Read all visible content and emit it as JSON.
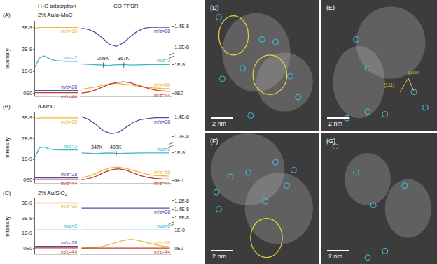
{
  "figure": {
    "column_titles": [
      "H₂O adsorption",
      "CO TPSR"
    ]
  },
  "chart_data": [
    {
      "type": "line",
      "panel": "(A)",
      "title": "2% Au/α-MoC",
      "y_label": "Intensity",
      "tick_labels": "y",
      "grid": false,
      "adsorption": {
        "x": [
          0,
          1,
          2,
          3,
          4,
          5,
          6,
          7,
          8,
          9,
          10
        ],
        "xlim": [
          0,
          10
        ],
        "ylim": [
          -1.5e-10,
          3.3e-09
        ],
        "yticks": [
          {
            "value": 0,
            "label": "0E0"
          },
          {
            "value": 1e-09,
            "label": "1E-9"
          },
          {
            "value": 2e-09,
            "label": "2E-9"
          },
          {
            "value": 3e-09,
            "label": "3E-9"
          }
        ],
        "series": [
          {
            "name": "m/z=18",
            "color": "#f0b43c",
            "values": [
              2.95e-09,
              3e-09,
              3e-09,
              3e-09,
              3e-09,
              3e-09,
              3e-09,
              3e-09,
              3e-09,
              3e-09,
              3e-09
            ]
          },
          {
            "name": "m/z=2",
            "color": "#3fb6c8",
            "values": [
              1.2e-09,
              1.6e-09,
              1.7e-09,
              1.62e-09,
              1.52e-09,
              1.48e-09,
              1.46e-09,
              1.45e-09,
              1.45e-09,
              1.45e-09,
              1.45e-09
            ]
          },
          {
            "name": "m/z=28",
            "color": "#4e4ea6",
            "values": [
              1.2e-10,
              1.2e-10,
              1.2e-10,
              1.2e-10,
              1.2e-10,
              1.2e-10,
              1.2e-10,
              1.2e-10,
              1.2e-10,
              1.2e-10,
              1.2e-10
            ]
          },
          {
            "name": "m/z=44",
            "color": "#c0392b",
            "values": [
              2e-11,
              2e-11,
              2e-11,
              2e-11,
              2e-11,
              2e-11,
              2e-11,
              2e-11,
              2e-11,
              2e-11,
              2e-11
            ]
          }
        ]
      },
      "tpsr": {
        "x": [
          245,
          265,
          285,
          305,
          325,
          345,
          365,
          385,
          405,
          425,
          445,
          465,
          485,
          500
        ],
        "xlim": [
          240,
          505
        ],
        "upper": {
          "ylim": [
            1.15e-08,
            1.45e-08
          ],
          "yticks": [
            {
              "value": 1.2e-08,
              "label": "1.2E-8"
            },
            {
              "value": 1.4e-08,
              "label": "1.4E-8"
            }
          ],
          "series": [
            {
              "name": "m/z=28",
              "color": "#4e4ea6",
              "values": [
                1.38e-08,
                1.37e-08,
                1.34e-08,
                1.29e-08,
                1.23e-08,
                1.21e-08,
                1.24e-08,
                1.3e-08,
                1.35e-08,
                1.38e-08,
                1.39e-08,
                1.39e-08,
                1.39e-08,
                1.39e-08
              ]
            }
          ]
        },
        "lower": {
          "ylim": [
            -1e-10,
            1.2e-09
          ],
          "yticks": [
            {
              "value": 0,
              "label": "0E0"
            },
            {
              "value": 1e-09,
              "label": "1E-9"
            }
          ],
          "series": [
            {
              "name": "m/z=2",
              "color": "#3fb6c8",
              "values": [
                1.02e-09,
                1.01e-09,
                1e-09,
                9.8e-10,
                9.7e-10,
                9.9e-10,
                1e-09,
                9.8e-10,
                9.9e-10,
                1e-09,
                1e-09,
                1e-09,
                1e-09,
                1e-09
              ]
            },
            {
              "name": "m/z=18",
              "color": "#f0b43c",
              "values": [
                1.5e-10,
                1.8e-10,
                2.2e-10,
                2.8e-10,
                3.3e-10,
                3.5e-10,
                3.3e-10,
                3e-10,
                2.6e-10,
                2.2e-10,
                2e-10,
                1.8e-10,
                1.7e-10,
                1.7e-10
              ]
            },
            {
              "name": "m/z=44",
              "color": "#c0392b",
              "values": [
                2e-11,
                5e-11,
                1.2e-10,
                2.2e-10,
                3.2e-10,
                3.8e-10,
                4e-10,
                3.7e-10,
                3e-10,
                2.2e-10,
                1.5e-10,
                1e-10,
                8e-11,
                7e-11
              ]
            }
          ]
        },
        "annotations": [
          {
            "text": "308K",
            "x": 308
          },
          {
            "text": "367K",
            "x": 367
          }
        ]
      }
    },
    {
      "type": "line",
      "panel": "(B)",
      "title": "α-MoC",
      "y_label": "Intensity",
      "tick_labels": "y",
      "grid": false,
      "adsorption": {
        "x": [
          0,
          1,
          2,
          3,
          4,
          5,
          6,
          7,
          8,
          9,
          10
        ],
        "xlim": [
          0,
          10
        ],
        "ylim": [
          -1.5e-10,
          3.3e-09
        ],
        "yticks": [
          {
            "value": 0,
            "label": "0E0"
          },
          {
            "value": 1e-09,
            "label": "1E-9"
          },
          {
            "value": 2e-09,
            "label": "2E-9"
          },
          {
            "value": 3e-09,
            "label": "3E-9"
          }
        ],
        "series": [
          {
            "name": "m/z=18",
            "color": "#f0b43c",
            "values": [
              2.95e-09,
              3e-09,
              3e-09,
              3e-09,
              3e-09,
              3e-09,
              3e-09,
              3e-09,
              3e-09,
              3e-09,
              3e-09
            ]
          },
          {
            "name": "m/z=2",
            "color": "#3fb6c8",
            "values": [
              1.1e-09,
              1.55e-09,
              1.6e-09,
              1.52e-09,
              1.47e-09,
              1.45e-09,
              1.45e-09,
              1.45e-09,
              1.45e-09,
              1.45e-09,
              1.45e-09
            ]
          },
          {
            "name": "m/z=28",
            "color": "#4e4ea6",
            "values": [
              1e-10,
              1e-10,
              1e-10,
              1e-10,
              1e-10,
              1e-10,
              1e-10,
              1e-10,
              1e-10,
              1e-10,
              1e-10
            ]
          },
          {
            "name": "m/z=44",
            "color": "#c0392b",
            "values": [
              2e-11,
              2e-11,
              2e-11,
              2e-11,
              2e-11,
              2e-11,
              2e-11,
              2e-11,
              2e-11,
              2e-11,
              2e-11
            ]
          }
        ]
      },
      "tpsr": {
        "x": [
          305,
          325,
          345,
          365,
          385,
          405,
          425,
          445,
          465,
          485,
          505,
          525,
          545
        ],
        "xlim": [
          300,
          552
        ],
        "upper": {
          "ylim": [
            1.15e-08,
            1.45e-08
          ],
          "yticks": [
            {
              "value": 1.2e-08,
              "label": "1.2E-8"
            },
            {
              "value": 1.4e-08,
              "label": "1.4E-8"
            }
          ],
          "series": [
            {
              "name": "m/z=28",
              "color": "#4e4ea6",
              "values": [
                1.4e-08,
                1.37e-08,
                1.32e-08,
                1.26e-08,
                1.23e-08,
                1.24e-08,
                1.29e-08,
                1.34e-08,
                1.37e-08,
                1.38e-08,
                1.39e-08,
                1.39e-08,
                1.39e-08
              ]
            }
          ]
        },
        "lower": {
          "ylim": [
            -1e-10,
            1.2e-09
          ],
          "yticks": [
            {
              "value": 0,
              "label": "0E0"
            },
            {
              "value": 1e-09,
              "label": "1E-9"
            }
          ],
          "series": [
            {
              "name": "m/z=2",
              "color": "#3fb6c8",
              "values": [
                1e-09,
                9.9e-10,
                9.7e-10,
                9.9e-10,
                1e-09,
                9.8e-10,
                9.9e-10,
                1e-09,
                1e-09,
                1e-09,
                1e-09,
                1e-09,
                1e-09
              ]
            },
            {
              "name": "m/z=18",
              "color": "#f0b43c",
              "values": [
                1e-10,
                1.6e-10,
                2.6e-10,
                3.8e-10,
                4.6e-10,
                4.8e-10,
                4.4e-10,
                3.6e-10,
                2.8e-10,
                2.2e-10,
                1.8e-10,
                1.6e-10,
                1.5e-10
              ]
            },
            {
              "name": "m/z=44",
              "color": "#c0392b",
              "values": [
                2e-11,
                6e-11,
                1.5e-10,
                2.8e-10,
                3.8e-10,
                4.2e-10,
                3.8e-10,
                2.8e-10,
                1.8e-10,
                1.1e-10,
                7e-11,
                5e-11,
                4e-11
              ]
            }
          ]
        },
        "annotations": [
          {
            "text": "347K",
            "x": 347
          },
          {
            "text": "400K",
            "x": 400
          }
        ]
      }
    },
    {
      "type": "line",
      "panel": "(C)",
      "title": "2% Au/SiO₂",
      "y_label": "Intensity",
      "tick_labels": "y",
      "grid": false,
      "adsorption": {
        "x": [
          0,
          1,
          2,
          3,
          4,
          5,
          6,
          7,
          8,
          9,
          10
        ],
        "xlim": [
          0,
          10
        ],
        "ylim": [
          -4e-10,
          3.3e-09
        ],
        "yticks": [
          {
            "value": 0,
            "label": "0E0"
          },
          {
            "value": 1e-09,
            "label": "1E-9"
          },
          {
            "value": 2e-09,
            "label": "2E-9"
          },
          {
            "value": 3e-09,
            "label": "3E-9"
          }
        ],
        "series": [
          {
            "name": "m/z=18",
            "color": "#f0b43c",
            "values": [
              3e-09,
              3e-09,
              3e-09,
              3e-09,
              3e-09,
              3e-09,
              3e-09,
              3e-09,
              3e-09,
              3e-09,
              3e-09
            ]
          },
          {
            "name": "m/z=2",
            "color": "#3fb6c8",
            "values": [
              1.2e-09,
              1.2e-09,
              1.2e-09,
              1.2e-09,
              1.2e-09,
              1.2e-09,
              1.2e-09,
              1.2e-09,
              1.2e-09,
              1.2e-09,
              1.2e-09
            ]
          },
          {
            "name": "m/z=28",
            "color": "#4e4ea6",
            "values": [
              1.2e-10,
              1.2e-10,
              1.2e-10,
              1.2e-10,
              1.2e-10,
              1.2e-10,
              1.2e-10,
              1.2e-10,
              1.2e-10,
              1.2e-10,
              1.2e-10
            ]
          },
          {
            "name": "m/z=44",
            "color": "#c0392b",
            "values": [
              2e-11,
              2e-11,
              2e-11,
              2e-11,
              2e-11,
              2e-11,
              2e-11,
              2e-11,
              2e-11,
              2e-11,
              2e-11
            ]
          }
        ]
      },
      "tpsr": {
        "x": [
          245,
          265,
          285,
          305,
          325,
          345,
          365,
          385,
          405,
          425,
          445,
          465,
          485,
          500
        ],
        "xlim": [
          240,
          505
        ],
        "upper": {
          "ylim": [
            1.1e-08,
            1.65e-08
          ],
          "yticks": [
            {
              "value": 1.2e-08,
              "label": "1.2E-8"
            },
            {
              "value": 1.4e-08,
              "label": "1.4E-8"
            },
            {
              "value": 1.6e-08,
              "label": "1.6E-8"
            }
          ],
          "series": [
            {
              "name": "m/z=28",
              "color": "#4e4ea6",
              "values": [
                1.42e-08,
                1.42e-08,
                1.42e-08,
                1.42e-08,
                1.42e-08,
                1.42e-08,
                1.42e-08,
                1.42e-08,
                1.42e-08,
                1.42e-08,
                1.42e-08,
                1.42e-08,
                1.42e-08,
                1.42e-08
              ]
            }
          ]
        },
        "lower": {
          "ylim": [
            -3e-10,
            1.2e-09
          ],
          "yticks": [
            {
              "value": 0,
              "label": "0E0"
            },
            {
              "value": 1e-09,
              "label": "1E-9"
            }
          ],
          "series": [
            {
              "name": "m/z=2",
              "color": "#3fb6c8",
              "values": [
                1e-09,
                1e-09,
                1e-09,
                1e-09,
                1e-09,
                1e-09,
                1e-09,
                1e-09,
                1e-09,
                1e-09,
                1e-09,
                1e-09,
                1e-09,
                1e-09
              ]
            },
            {
              "name": "m/z=18",
              "color": "#f0b43c",
              "values": [
                2e-11,
                3e-11,
                6e-11,
                1.2e-10,
                2.2e-10,
                3.4e-10,
                4.4e-10,
                5e-10,
                4.6e-10,
                3.6e-10,
                2.6e-10,
                1.8e-10,
                1.3e-10,
                1e-10
              ]
            },
            {
              "name": "m/z=44",
              "color": "#c0392b",
              "values": [
                3e-11,
                3e-11,
                3e-11,
                3e-11,
                3e-11,
                3e-11,
                3e-11,
                3e-11,
                3e-11,
                3e-11,
                3e-11,
                3e-11,
                3e-11,
                3e-11
              ]
            }
          ]
        },
        "annotations": []
      }
    }
  ],
  "micrographs": [
    {
      "label": "(D)",
      "scale_bar": "2 nm"
    },
    {
      "label": "(E)",
      "scale_bar": "2 nm",
      "planes": [
        "(111)",
        "(200)"
      ]
    },
    {
      "label": "(F)",
      "scale_bar": "2 nm"
    },
    {
      "label": "(G)",
      "scale_bar": "2 nm"
    }
  ]
}
